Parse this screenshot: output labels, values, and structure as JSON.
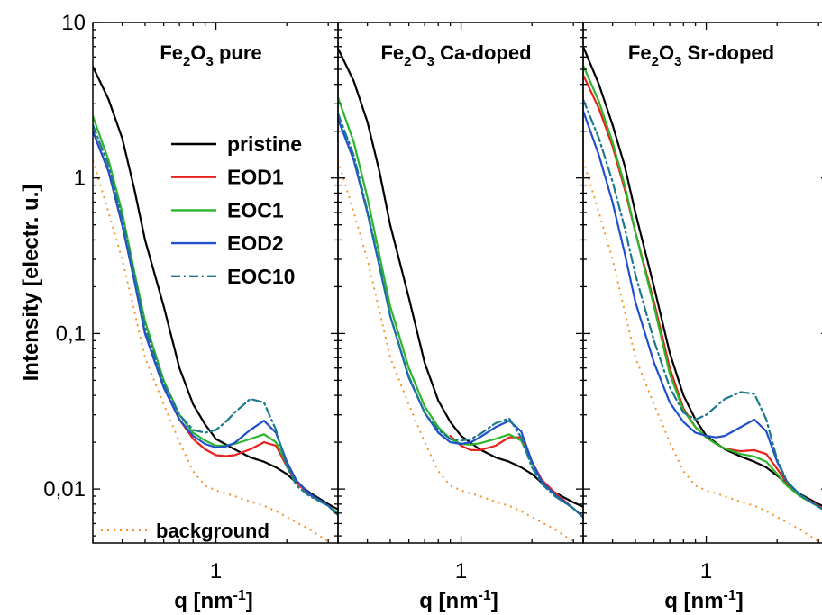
{
  "chart_data": [
    {
      "type": "line",
      "panel_title": {
        "base": "Fe",
        "sub1": "2",
        "mid": "O",
        "sub2": "3",
        "rest": " pure"
      },
      "x_scale": "log",
      "y_scale": "log",
      "xlim": [
        0.3,
        3.3
      ],
      "ylim": [
        0.0045,
        10
      ],
      "ylabel": "Intensity [electr. u.]",
      "xlabel": {
        "main": "q [nm",
        "sup": "-1",
        "close": "]"
      },
      "x_ticks": [
        {
          "value": 1,
          "label": "1"
        }
      ],
      "y_ticks": [
        {
          "value": 10,
          "label": "10"
        },
        {
          "value": 1,
          "label": "1"
        },
        {
          "value": 0.1,
          "label": "0,1"
        },
        {
          "value": 0.01,
          "label": "0,01"
        }
      ],
      "legend": {
        "placement": "center-right",
        "entries": [
          "pristine",
          "EOD1",
          "EOC1",
          "EOD2",
          "EOC10"
        ]
      },
      "annotations": [
        {
          "text": "background"
        }
      ],
      "series": [
        {
          "name": "pristine",
          "color": "#000000",
          "style": "solid",
          "x": [
            0.3,
            0.35,
            0.4,
            0.45,
            0.5,
            0.6,
            0.7,
            0.8,
            0.9,
            1.0,
            1.2,
            1.4,
            1.6,
            1.8,
            2.0,
            2.2,
            2.5,
            3.0,
            3.3
          ],
          "y": [
            5.2,
            3.2,
            1.8,
            0.85,
            0.4,
            0.15,
            0.06,
            0.035,
            0.026,
            0.021,
            0.018,
            0.016,
            0.015,
            0.0138,
            0.0125,
            0.011,
            0.0095,
            0.008,
            0.0074
          ]
        },
        {
          "name": "EOD1",
          "color": "#e8211c",
          "style": "solid",
          "x": [
            0.3,
            0.35,
            0.4,
            0.45,
            0.5,
            0.6,
            0.7,
            0.8,
            0.9,
            1.0,
            1.1,
            1.2,
            1.4,
            1.6,
            1.8,
            2.0,
            2.2,
            2.5,
            3.0,
            3.3
          ],
          "y": [
            2.0,
            1.1,
            0.5,
            0.22,
            0.1,
            0.045,
            0.028,
            0.021,
            0.018,
            0.0165,
            0.0163,
            0.0165,
            0.018,
            0.02,
            0.019,
            0.014,
            0.011,
            0.0092,
            0.0078,
            0.007
          ]
        },
        {
          "name": "EOC1",
          "color": "#2ab52a",
          "style": "solid",
          "x": [
            0.3,
            0.35,
            0.4,
            0.45,
            0.5,
            0.6,
            0.7,
            0.8,
            0.9,
            1.0,
            1.1,
            1.2,
            1.4,
            1.6,
            1.8,
            2.0,
            2.2,
            2.5,
            3.0,
            3.3
          ],
          "y": [
            2.5,
            1.3,
            0.6,
            0.25,
            0.12,
            0.05,
            0.03,
            0.023,
            0.0205,
            0.019,
            0.019,
            0.0195,
            0.021,
            0.0225,
            0.02,
            0.0145,
            0.0113,
            0.0093,
            0.0078,
            0.007
          ]
        },
        {
          "name": "EOD2",
          "color": "#1f4fcc",
          "style": "solid",
          "x": [
            0.3,
            0.35,
            0.4,
            0.45,
            0.5,
            0.6,
            0.7,
            0.8,
            0.9,
            1.0,
            1.1,
            1.2,
            1.4,
            1.6,
            1.8,
            2.0,
            2.2,
            2.5,
            3.0,
            3.3
          ],
          "y": [
            2.0,
            1.1,
            0.5,
            0.22,
            0.1,
            0.045,
            0.028,
            0.022,
            0.0195,
            0.0185,
            0.0188,
            0.0198,
            0.024,
            0.0275,
            0.023,
            0.015,
            0.0113,
            0.0093,
            0.0078,
            0.0068
          ]
        },
        {
          "name": "EOC10",
          "color": "#1b7a8c",
          "style": "dashdot",
          "x": [
            0.3,
            0.35,
            0.4,
            0.45,
            0.5,
            0.6,
            0.7,
            0.8,
            0.9,
            1.0,
            1.1,
            1.2,
            1.4,
            1.6,
            1.8,
            2.0,
            2.2,
            2.5,
            3.0,
            3.3
          ],
          "y": [
            2.2,
            1.2,
            0.55,
            0.24,
            0.11,
            0.048,
            0.03,
            0.024,
            0.023,
            0.024,
            0.027,
            0.031,
            0.038,
            0.036,
            0.024,
            0.014,
            0.0105,
            0.009,
            0.0078,
            0.0068
          ]
        },
        {
          "name": "background",
          "color": "#f5922a",
          "style": "dotted",
          "x": [
            0.3,
            0.35,
            0.4,
            0.45,
            0.5,
            0.6,
            0.7,
            0.8,
            0.9,
            1.0,
            1.2,
            1.4,
            1.6,
            1.8,
            2.0,
            2.5,
            3.0,
            3.3
          ],
          "y": [
            1.3,
            0.6,
            0.3,
            0.14,
            0.07,
            0.035,
            0.02,
            0.013,
            0.0105,
            0.0098,
            0.009,
            0.0083,
            0.0078,
            0.0072,
            0.0066,
            0.0055,
            0.0046,
            0.0041
          ]
        }
      ]
    },
    {
      "type": "line",
      "panel_title": {
        "base": "Fe",
        "sub1": "2",
        "mid": "O",
        "sub2": "3",
        "rest": " Ca-doped"
      },
      "x_scale": "log",
      "y_scale": "log",
      "xlim": [
        0.3,
        3.3
      ],
      "ylim": [
        0.0045,
        10
      ],
      "xlabel": {
        "main": "q [nm",
        "sup": "-1",
        "close": "]"
      },
      "x_ticks": [
        {
          "value": 1,
          "label": "1"
        }
      ],
      "series": [
        {
          "name": "pristine",
          "color": "#000000",
          "style": "solid",
          "x": [
            0.3,
            0.35,
            0.4,
            0.45,
            0.5,
            0.6,
            0.7,
            0.8,
            0.9,
            1.0,
            1.2,
            1.4,
            1.6,
            1.8,
            2.0,
            2.2,
            2.5,
            3.0,
            3.3
          ],
          "y": [
            6.8,
            4.2,
            2.3,
            1.1,
            0.5,
            0.17,
            0.065,
            0.037,
            0.027,
            0.022,
            0.018,
            0.016,
            0.015,
            0.0138,
            0.0125,
            0.011,
            0.0095,
            0.0082,
            0.0077
          ]
        },
        {
          "name": "EOD1",
          "color": "#e8211c",
          "style": "solid",
          "x": [
            0.9,
            1.0,
            1.1,
            1.2,
            1.4,
            1.6,
            1.8,
            2.0,
            2.2,
            2.5,
            3.0,
            3.3
          ],
          "y": [
            0.022,
            0.019,
            0.0178,
            0.0178,
            0.019,
            0.0215,
            0.0215,
            0.015,
            0.0115,
            0.0095,
            0.0075,
            0.0066
          ]
        },
        {
          "name": "EOC1",
          "color": "#2ab52a",
          "style": "solid",
          "x": [
            0.3,
            0.35,
            0.4,
            0.45,
            0.5,
            0.6,
            0.7,
            0.8,
            0.9,
            1.0,
            1.1,
            1.2,
            1.4,
            1.6,
            1.8,
            2.0,
            2.2,
            2.5,
            3.0,
            3.3
          ],
          "y": [
            3.3,
            1.7,
            0.75,
            0.32,
            0.15,
            0.06,
            0.034,
            0.025,
            0.021,
            0.0195,
            0.0193,
            0.0197,
            0.021,
            0.0225,
            0.0205,
            0.0148,
            0.0112,
            0.0092,
            0.0075,
            0.0066
          ]
        },
        {
          "name": "EOD2",
          "color": "#1f4fcc",
          "style": "solid",
          "x": [
            0.3,
            0.35,
            0.4,
            0.45,
            0.5,
            0.6,
            0.7,
            0.8,
            0.9,
            1.0,
            1.1,
            1.2,
            1.4,
            1.6,
            1.8,
            2.0,
            2.2,
            2.5,
            3.0,
            3.3
          ],
          "y": [
            2.4,
            1.3,
            0.6,
            0.27,
            0.13,
            0.052,
            0.031,
            0.023,
            0.02,
            0.0195,
            0.02,
            0.0215,
            0.025,
            0.0275,
            0.0235,
            0.015,
            0.0112,
            0.0092,
            0.0075,
            0.0066
          ]
        },
        {
          "name": "EOC10",
          "color": "#1b7a8c",
          "style": "dashdot",
          "x": [
            0.3,
            0.35,
            0.4,
            0.45,
            0.5,
            0.6,
            0.7,
            0.8,
            0.9,
            1.0,
            1.1,
            1.2,
            1.4,
            1.6,
            1.8,
            2.0,
            2.2,
            2.5,
            3.0,
            3.3
          ],
          "y": [
            2.6,
            1.4,
            0.62,
            0.28,
            0.13,
            0.053,
            0.031,
            0.024,
            0.021,
            0.0205,
            0.021,
            0.0225,
            0.0265,
            0.0285,
            0.0215,
            0.0138,
            0.0108,
            0.009,
            0.0075,
            0.0066
          ]
        },
        {
          "name": "background",
          "color": "#f5922a",
          "style": "dotted",
          "x": [
            0.3,
            0.35,
            0.4,
            0.45,
            0.5,
            0.6,
            0.7,
            0.8,
            0.9,
            1.0,
            1.2,
            1.4,
            1.6,
            1.8,
            2.0,
            2.5,
            3.0,
            3.3
          ],
          "y": [
            1.3,
            0.6,
            0.3,
            0.14,
            0.07,
            0.035,
            0.02,
            0.013,
            0.0105,
            0.0098,
            0.009,
            0.0083,
            0.0078,
            0.0072,
            0.0066,
            0.0055,
            0.0046,
            0.0041
          ]
        }
      ]
    },
    {
      "type": "line",
      "panel_title": {
        "base": "Fe",
        "sub1": "2",
        "mid": "O",
        "sub2": "3",
        "rest": " Sr-doped"
      },
      "x_scale": "log",
      "y_scale": "log",
      "xlim": [
        0.3,
        3.3
      ],
      "ylim": [
        0.0045,
        10
      ],
      "xlabel": {
        "main": "q [nm",
        "sup": "-1",
        "close": "]"
      },
      "x_ticks": [
        {
          "value": 1,
          "label": "1"
        }
      ],
      "series": [
        {
          "name": "pristine",
          "color": "#000000",
          "style": "solid",
          "x": [
            0.3,
            0.35,
            0.4,
            0.45,
            0.5,
            0.6,
            0.7,
            0.8,
            0.9,
            1.0,
            1.2,
            1.4,
            1.6,
            1.8,
            2.0,
            2.2,
            2.5,
            3.0,
            3.3
          ],
          "y": [
            7.0,
            4.0,
            2.2,
            1.2,
            0.6,
            0.2,
            0.075,
            0.04,
            0.028,
            0.022,
            0.018,
            0.0162,
            0.015,
            0.0138,
            0.0122,
            0.0108,
            0.0093,
            0.008,
            0.0075
          ]
        },
        {
          "name": "EOD1",
          "color": "#e8211c",
          "style": "solid",
          "x": [
            0.3,
            0.35,
            0.4,
            0.45,
            0.5,
            0.6,
            0.7,
            0.8,
            0.9,
            1.0,
            1.1,
            1.2,
            1.4,
            1.6,
            1.8,
            2.0,
            2.2,
            2.5,
            3.0,
            3.3
          ],
          "y": [
            4.6,
            2.8,
            1.6,
            0.85,
            0.45,
            0.16,
            0.06,
            0.033,
            0.025,
            0.0215,
            0.0195,
            0.0182,
            0.0175,
            0.0178,
            0.0168,
            0.0135,
            0.011,
            0.0092,
            0.0078,
            0.0072
          ]
        },
        {
          "name": "EOC1",
          "color": "#2ab52a",
          "style": "solid",
          "x": [
            0.3,
            0.35,
            0.4,
            0.45,
            0.5,
            0.6,
            0.7,
            0.8,
            0.9,
            1.0,
            1.1,
            1.2,
            1.4,
            1.6,
            1.8,
            2.0,
            2.2,
            2.5,
            3.0,
            3.3
          ],
          "y": [
            5.3,
            3.1,
            1.7,
            0.9,
            0.45,
            0.15,
            0.055,
            0.032,
            0.025,
            0.0215,
            0.0195,
            0.0182,
            0.0168,
            0.0162,
            0.015,
            0.0125,
            0.0105,
            0.009,
            0.0077,
            0.007
          ]
        },
        {
          "name": "EOD2",
          "color": "#1f4fcc",
          "style": "solid",
          "x": [
            0.3,
            0.35,
            0.4,
            0.45,
            0.5,
            0.6,
            0.7,
            0.8,
            0.9,
            1.0,
            1.1,
            1.2,
            1.4,
            1.6,
            1.8,
            2.0,
            2.2,
            2.5,
            3.0,
            3.3
          ],
          "y": [
            2.7,
            1.4,
            0.7,
            0.33,
            0.16,
            0.065,
            0.036,
            0.027,
            0.023,
            0.022,
            0.0215,
            0.022,
            0.025,
            0.028,
            0.0235,
            0.015,
            0.0112,
            0.0092,
            0.0077,
            0.007
          ]
        },
        {
          "name": "EOC10",
          "color": "#1b7a8c",
          "style": "dashdot",
          "x": [
            0.3,
            0.35,
            0.4,
            0.45,
            0.5,
            0.6,
            0.7,
            0.8,
            0.9,
            1.0,
            1.1,
            1.2,
            1.4,
            1.6,
            1.8,
            2.0,
            2.2,
            2.5,
            3.0,
            3.3
          ],
          "y": [
            3.2,
            1.8,
            0.95,
            0.48,
            0.24,
            0.09,
            0.045,
            0.031,
            0.028,
            0.03,
            0.034,
            0.038,
            0.042,
            0.041,
            0.028,
            0.0155,
            0.0112,
            0.0092,
            0.0077,
            0.007
          ]
        },
        {
          "name": "background",
          "color": "#f5922a",
          "style": "dotted",
          "x": [
            0.3,
            0.35,
            0.4,
            0.45,
            0.5,
            0.6,
            0.7,
            0.8,
            0.9,
            1.0,
            1.2,
            1.4,
            1.6,
            1.8,
            2.0,
            2.5,
            3.0,
            3.3
          ],
          "y": [
            1.3,
            0.6,
            0.3,
            0.14,
            0.07,
            0.035,
            0.02,
            0.013,
            0.0105,
            0.0098,
            0.009,
            0.0083,
            0.0078,
            0.0072,
            0.0066,
            0.0055,
            0.0046,
            0.0041
          ]
        }
      ]
    }
  ]
}
